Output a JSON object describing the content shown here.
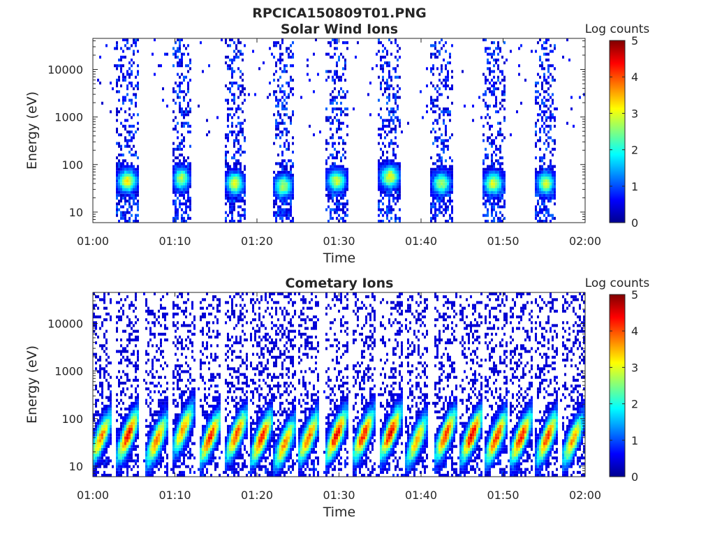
{
  "figure_title": "RPCICA150809T01.PNG",
  "chart_data": [
    {
      "type": "heatmap",
      "title": "Solar Wind Ions",
      "xlabel": "Time",
      "ylabel": "Energy (eV)",
      "y_scale": "log",
      "ylim": [
        6,
        45000
      ],
      "xlim": [
        "01:00",
        "02:00"
      ],
      "x_ticks": [
        "01:00",
        "01:10",
        "01:20",
        "01:30",
        "01:40",
        "01:50",
        "02:00"
      ],
      "y_ticks": [
        {
          "value": 10,
          "label": "10"
        },
        {
          "value": 100,
          "label": "100"
        },
        {
          "value": 1000,
          "label": "1000"
        },
        {
          "value": 10000,
          "label": "10000"
        }
      ],
      "colorbar": {
        "label": "Log counts",
        "min": 0,
        "max": 5,
        "ticks": [
          "0",
          "1",
          "2",
          "3",
          "4",
          "5"
        ],
        "colormap": "jet"
      },
      "sweeps": [
        {
          "center_min": 4.2,
          "width_min": 2.8,
          "peak_energy_ev": 45,
          "peak_log_counts": 3.0
        },
        {
          "center_min": 10.8,
          "width_min": 2.4,
          "peak_energy_ev": 50,
          "peak_log_counts": 2.6
        },
        {
          "center_min": 17.3,
          "width_min": 2.6,
          "peak_energy_ev": 40,
          "peak_log_counts": 2.8
        },
        {
          "center_min": 23.2,
          "width_min": 2.6,
          "peak_energy_ev": 35,
          "peak_log_counts": 2.6
        },
        {
          "center_min": 29.7,
          "width_min": 2.8,
          "peak_energy_ev": 45,
          "peak_log_counts": 2.7
        },
        {
          "center_min": 36.2,
          "width_min": 2.8,
          "peak_energy_ev": 55,
          "peak_log_counts": 2.9
        },
        {
          "center_min": 42.5,
          "width_min": 2.8,
          "peak_energy_ev": 40,
          "peak_log_counts": 2.5
        },
        {
          "center_min": 48.8,
          "width_min": 2.8,
          "peak_energy_ev": 40,
          "peak_log_counts": 2.8
        },
        {
          "center_min": 55.2,
          "width_min": 2.6,
          "peak_energy_ev": 40,
          "peak_log_counts": 2.7
        }
      ]
    },
    {
      "type": "heatmap",
      "title": "Cometary Ions",
      "xlabel": "Time",
      "ylabel": "Energy (eV)",
      "y_scale": "log",
      "ylim": [
        6,
        45000
      ],
      "xlim": [
        "01:00",
        "02:00"
      ],
      "x_ticks": [
        "01:00",
        "01:10",
        "01:20",
        "01:30",
        "01:40",
        "01:50",
        "02:00"
      ],
      "y_ticks": [
        {
          "value": 10,
          "label": "10"
        },
        {
          "value": 100,
          "label": "100"
        },
        {
          "value": 1000,
          "label": "1000"
        },
        {
          "value": 10000,
          "label": "10000"
        }
      ],
      "colorbar": {
        "label": "Log counts",
        "min": 0,
        "max": 5,
        "ticks": [
          "0",
          "1",
          "2",
          "3",
          "4",
          "5"
        ],
        "colormap": "jet"
      },
      "bursts": [
        {
          "center_min": 1.0,
          "peak_energy_ev": 40,
          "peak_log_counts": 3.5
        },
        {
          "center_min": 4.3,
          "peak_energy_ev": 45,
          "peak_log_counts": 4.2
        },
        {
          "center_min": 7.8,
          "peak_energy_ev": 35,
          "peak_log_counts": 3.6
        },
        {
          "center_min": 11.0,
          "peak_energy_ev": 60,
          "peak_log_counts": 3.4
        },
        {
          "center_min": 14.3,
          "peak_energy_ev": 40,
          "peak_log_counts": 4.0
        },
        {
          "center_min": 17.5,
          "peak_energy_ev": 45,
          "peak_log_counts": 3.8
        },
        {
          "center_min": 20.6,
          "peak_energy_ev": 40,
          "peak_log_counts": 4.1
        },
        {
          "center_min": 23.4,
          "peak_energy_ev": 30,
          "peak_log_counts": 3.5
        },
        {
          "center_min": 26.3,
          "peak_energy_ev": 40,
          "peak_log_counts": 3.7
        },
        {
          "center_min": 29.7,
          "peak_energy_ev": 45,
          "peak_log_counts": 4.2
        },
        {
          "center_min": 33.0,
          "peak_energy_ev": 45,
          "peak_log_counts": 4.0
        },
        {
          "center_min": 36.3,
          "peak_energy_ev": 50,
          "peak_log_counts": 4.2
        },
        {
          "center_min": 39.5,
          "peak_energy_ev": 35,
          "peak_log_counts": 3.3
        },
        {
          "center_min": 43.0,
          "peak_energy_ev": 45,
          "peak_log_counts": 3.9
        },
        {
          "center_min": 46.2,
          "peak_energy_ev": 45,
          "peak_log_counts": 4.3
        },
        {
          "center_min": 49.2,
          "peak_energy_ev": 40,
          "peak_log_counts": 4.0
        },
        {
          "center_min": 52.2,
          "peak_energy_ev": 40,
          "peak_log_counts": 4.1
        },
        {
          "center_min": 55.4,
          "peak_energy_ev": 40,
          "peak_log_counts": 3.9
        },
        {
          "center_min": 58.5,
          "peak_energy_ev": 35,
          "peak_log_counts": 3.4
        }
      ]
    }
  ]
}
